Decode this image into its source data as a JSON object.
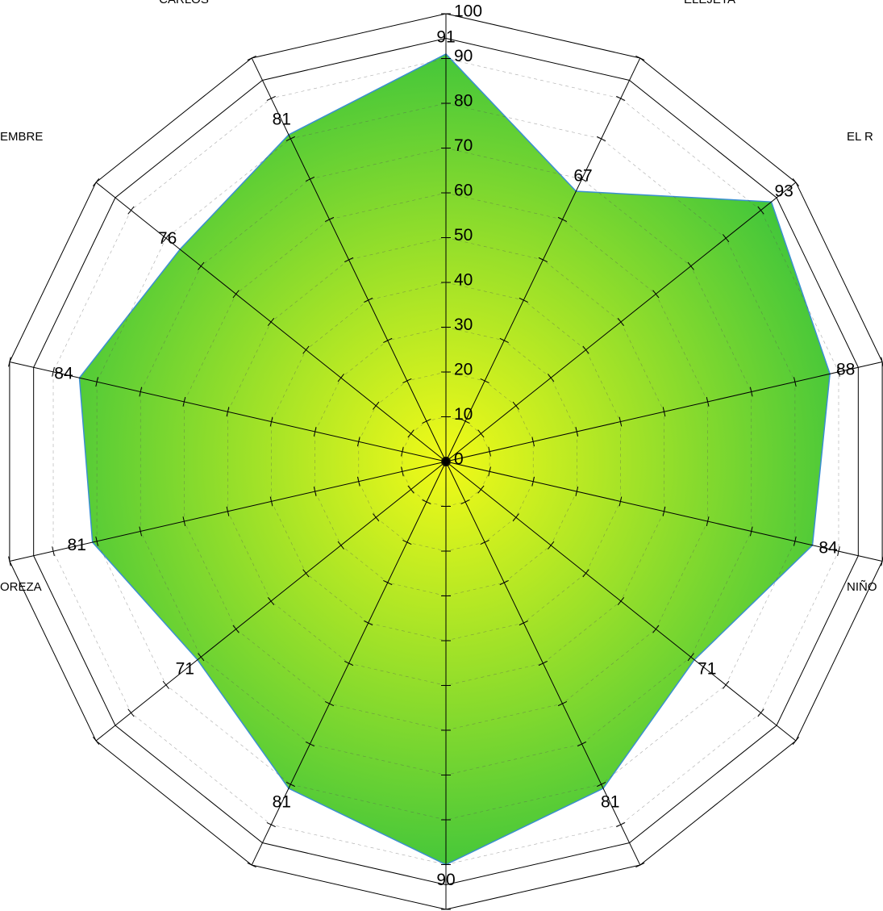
{
  "chart_data": {
    "type": "radar",
    "values": [
      91,
      67,
      93,
      88,
      84,
      71,
      81,
      90,
      81,
      71,
      81,
      84,
      76,
      81
    ],
    "rlim": [
      0,
      100
    ],
    "rticks": [
      0,
      10,
      20,
      30,
      40,
      50,
      60,
      70,
      80,
      90,
      100
    ],
    "color": "#3a8fd0",
    "fill_center": "#f2fa18",
    "fill_edge": "#3cc43c",
    "annotations": [
      "CARLOS",
      "ELEJETA",
      "EMBRE",
      "EL R",
      "OREZA",
      "NIÑO"
    ]
  }
}
